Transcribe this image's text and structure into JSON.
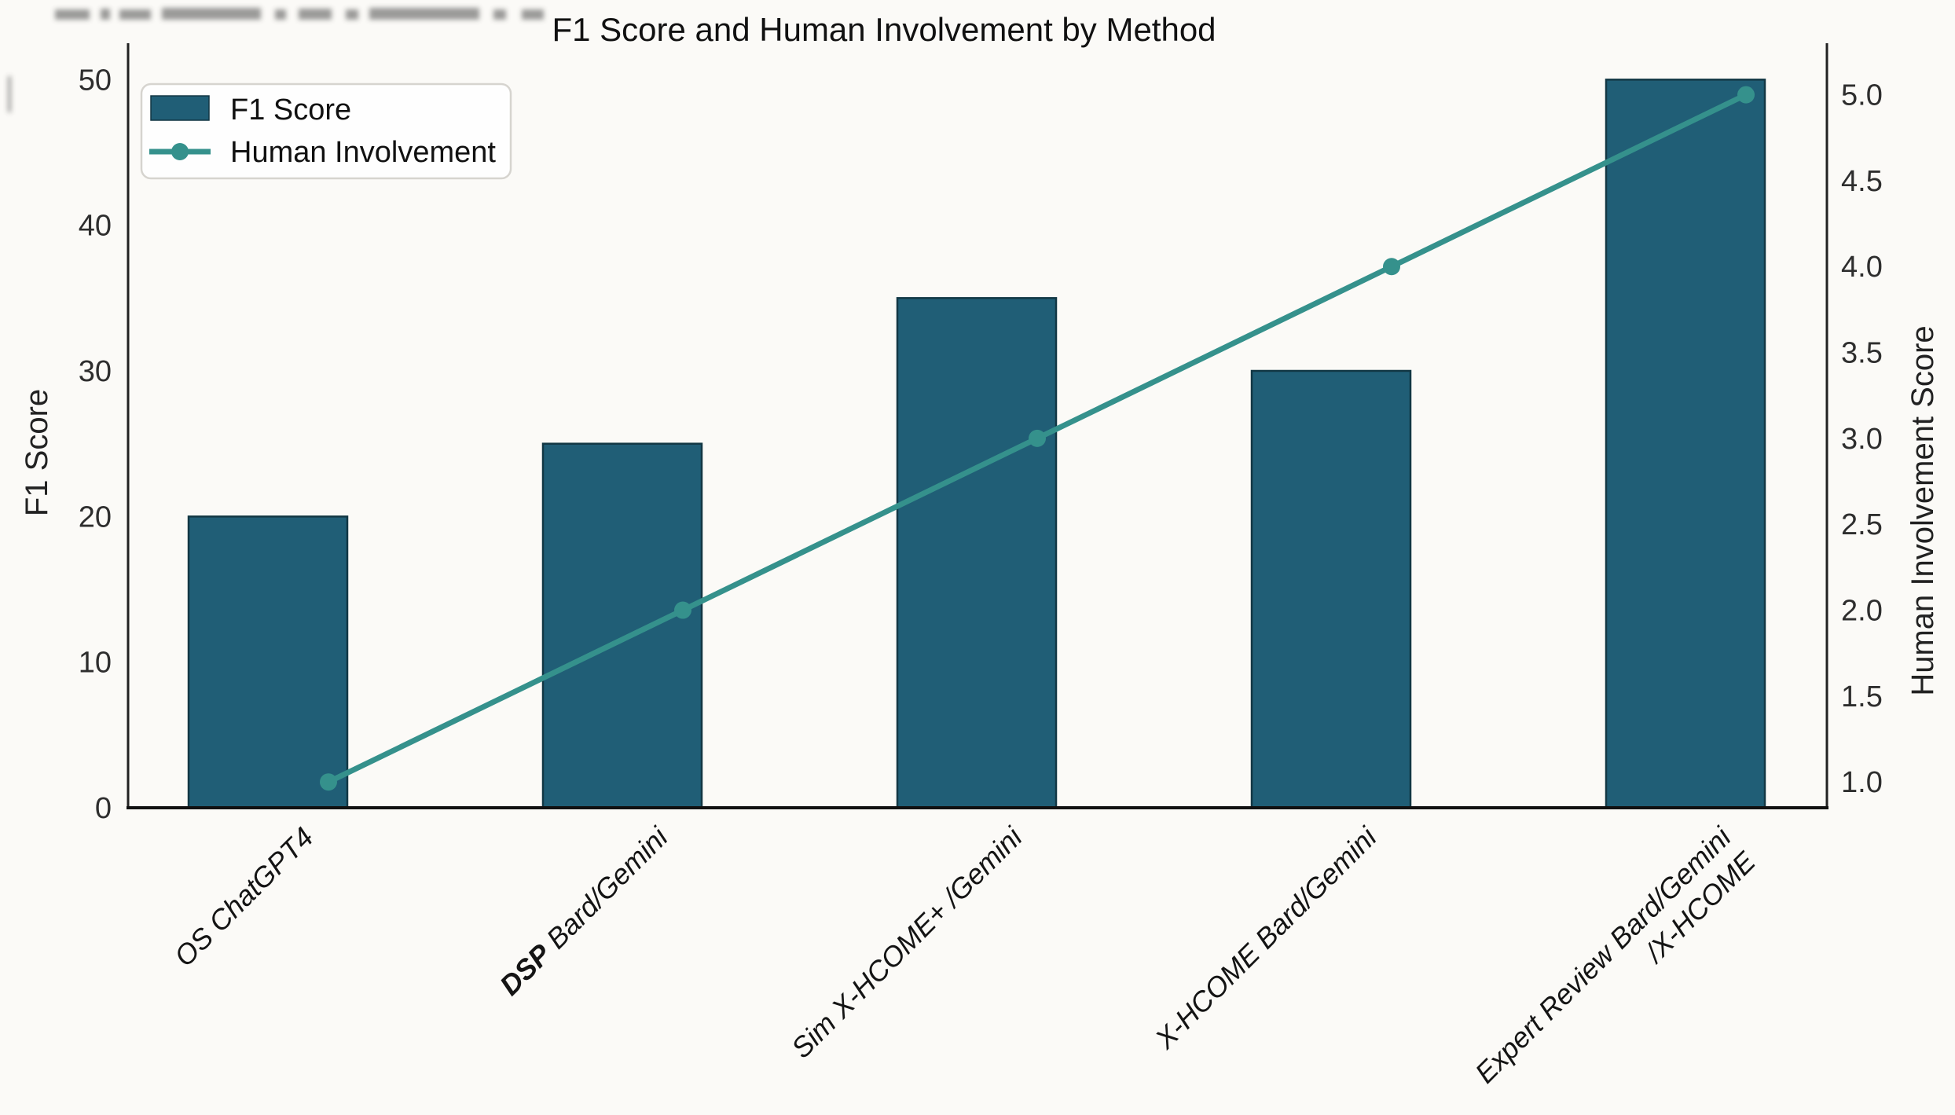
{
  "figure": {
    "background_color": "#fbfaf7",
    "bar_color": "#205e76",
    "bar_edge_color": "#123744",
    "line_color": "#35918c",
    "spine_color": "#222222",
    "legend_border_color": "#d6d4cf",
    "legend_background": "#fefefe"
  },
  "chart_data": {
    "type": "bar+line",
    "title": "F1 Score and Human Involvement by Method",
    "categories": [
      "OS ChatGPT4",
      "DSP Bard/Gemini",
      "Sim X-HCOME+ /Gemini",
      "X-HCOME Bard/Gemini",
      "Expert Review Bard/Gemini\n/X-HCOME"
    ],
    "series": [
      {
        "name": "F1 Score",
        "type": "bar",
        "axis": "left",
        "values": [
          20,
          25,
          35,
          30,
          50
        ],
        "color": "#205e76"
      },
      {
        "name": "Human Involvement",
        "type": "line",
        "axis": "right",
        "values": [
          1.0,
          2.0,
          3.0,
          4.0,
          5.0
        ],
        "color": "#35918c"
      }
    ],
    "xlabel": "",
    "ylabel_left": "F1 Score",
    "ylabel_right": "Human Involvement Score",
    "yticks_left": [
      "0",
      "10",
      "20",
      "30",
      "40",
      "50"
    ],
    "yticks_right": [
      "1.0",
      "1.5",
      "2.0",
      "2.5",
      "3.0",
      "3.5",
      "4.0",
      "4.5",
      "5.0"
    ],
    "ylim_left": [
      0,
      52.5
    ],
    "ylim_right": [
      0.85,
      5.3
    ],
    "grid": false,
    "legend_position": "upper left",
    "legend_entries": [
      "F1 Score",
      "Human Involvement"
    ],
    "x_tick_style": "italic, rotated 45 degrees",
    "bold_category_words": [
      "DSP"
    ]
  }
}
